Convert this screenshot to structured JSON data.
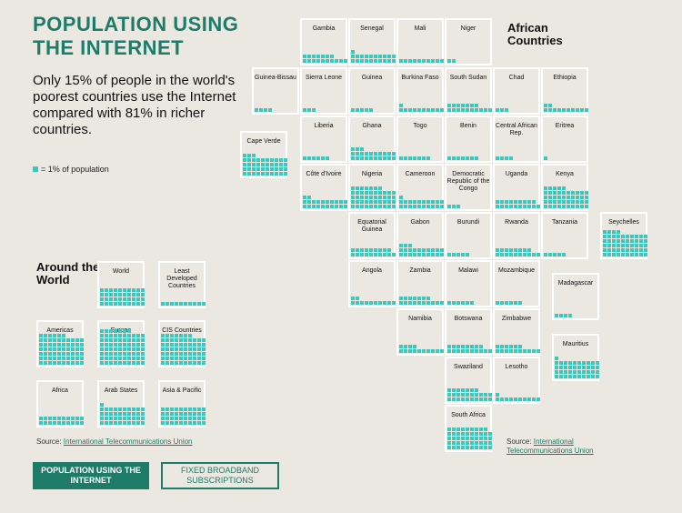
{
  "title": "POPULATION USING THE INTERNET",
  "intro": "Only 15% of people in the world's poorest countries use the Internet compared with 81% in richer countries.",
  "legend": "= 1% of population",
  "world_heading": "Around the World",
  "africa_heading": "African Countries",
  "colors": {
    "accent": "#1d7b67",
    "square": "#3dc7bd",
    "background": "#ebe8e2"
  },
  "world": [
    {
      "label": "World",
      "percent": 40
    },
    {
      "label": "Least Developed Countries",
      "percent": 10
    },
    {
      "label": "Americas",
      "percent": 66
    },
    {
      "label": "Europe",
      "percent": 77
    },
    {
      "label": "CIS Countries",
      "percent": 67
    },
    {
      "label": "Africa",
      "percent": 20
    },
    {
      "label": "Arab States",
      "percent": 41
    },
    {
      "label": "Asia & Pacific",
      "percent": 40
    }
  ],
  "africa": [
    {
      "label": "Gambia",
      "percent": 17
    },
    {
      "label": "Senegal",
      "percent": 21
    },
    {
      "label": "Mali",
      "percent": 10
    },
    {
      "label": "Niger",
      "percent": 2
    },
    {
      "label": "Guinea-Bissau",
      "percent": 4
    },
    {
      "label": "Sierra Leone",
      "percent": 3
    },
    {
      "label": "Guinea",
      "percent": 5
    },
    {
      "label": "Burkina Faso",
      "percent": 11
    },
    {
      "label": "South Sudan",
      "percent": 17
    },
    {
      "label": "Chad",
      "percent": 3
    },
    {
      "label": "Ethiopia",
      "percent": 12
    },
    {
      "label": "Cape Verde",
      "percent": 43
    },
    {
      "label": "Liberia",
      "percent": 6
    },
    {
      "label": "Ghana",
      "percent": 23
    },
    {
      "label": "Togo",
      "percent": 7
    },
    {
      "label": "Benin",
      "percent": 7
    },
    {
      "label": "Central African Rep.",
      "percent": 4
    },
    {
      "label": "Eritrea",
      "percent": 1
    },
    {
      "label": "Côte d'Ivoire",
      "percent": 22
    },
    {
      "label": "Nigeria",
      "percent": 47
    },
    {
      "label": "Cameroon",
      "percent": 21
    },
    {
      "label": "Democratic Republic of the Congo",
      "percent": 3
    },
    {
      "label": "Uganda",
      "percent": 19
    },
    {
      "label": "Kenya",
      "percent": 45
    },
    {
      "label": "Equatorial Guinea",
      "percent": 19
    },
    {
      "label": "Gabon",
      "percent": 23
    },
    {
      "label": "Burundi",
      "percent": 5
    },
    {
      "label": "Rwanda",
      "percent": 18
    },
    {
      "label": "Tanzania",
      "percent": 5
    },
    {
      "label": "Seychelles",
      "percent": 54
    },
    {
      "label": "Angola",
      "percent": 12
    },
    {
      "label": "Zambia",
      "percent": 17
    },
    {
      "label": "Malawi",
      "percent": 6
    },
    {
      "label": "Mozambique",
      "percent": 6
    },
    {
      "label": "Madagascar",
      "percent": 4
    },
    {
      "label": "Namibia",
      "percent": 14
    },
    {
      "label": "Botswana",
      "percent": 18
    },
    {
      "label": "Zimbabwe",
      "percent": 16
    },
    {
      "label": "Mauritius",
      "percent": 41
    },
    {
      "label": "Swaziland",
      "percent": 27
    },
    {
      "label": "Lesotho",
      "percent": 11
    },
    {
      "label": "South Africa",
      "percent": 49
    }
  ],
  "world_source": {
    "prefix": "Source: ",
    "link": "International Telecommunications Union"
  },
  "africa_source": {
    "prefix": "Source: ",
    "link": "International Telecommunications Union"
  },
  "buttons": {
    "active": "POPULATION USING THE INTERNET",
    "inactive": "FIXED BROADBAND SUBSCRIPTIONS"
  }
}
